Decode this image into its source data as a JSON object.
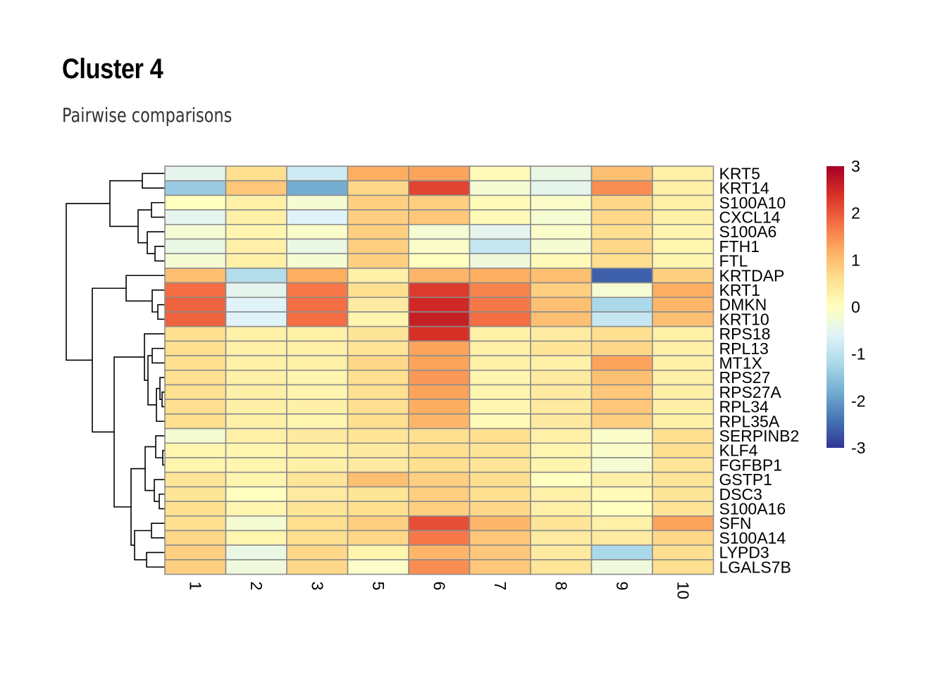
{
  "chart_data": {
    "type": "heatmap",
    "title": "Cluster 4",
    "subtitle": "Pairwise comparisons",
    "columns": [
      "1",
      "2",
      "3",
      "5",
      "6",
      "7",
      "8",
      "9",
      "10"
    ],
    "rows": [
      "KRT5",
      "KRT14",
      "S100A10",
      "CXCL14",
      "S100A6",
      "FTH1",
      "FTL",
      "KRTDAP",
      "KRT1",
      "DMKN",
      "KRT10",
      "RPS18",
      "RPL13",
      "MT1X",
      "RPS27",
      "RPS27A",
      "RPL34",
      "RPL35A",
      "SERPINB2",
      "KLF4",
      "FGFBP1",
      "GSTP1",
      "DSC3",
      "S100A16",
      "SFN",
      "S100A14",
      "LYPD3",
      "LGALS7B"
    ],
    "values": [
      [
        -0.5,
        0.6,
        -0.8,
        1.2,
        1.3,
        0.1,
        -0.4,
        1.0,
        0.3
      ],
      [
        -1.4,
        0.9,
        -1.8,
        0.7,
        2.2,
        -0.2,
        -0.5,
        1.5,
        0.3
      ],
      [
        0.0,
        0.3,
        -0.2,
        0.8,
        0.8,
        0.1,
        -0.1,
        0.7,
        0.3
      ],
      [
        -0.5,
        0.3,
        -0.6,
        0.8,
        0.9,
        0.1,
        -0.2,
        0.7,
        0.3
      ],
      [
        -0.2,
        0.2,
        -0.1,
        0.8,
        -0.2,
        -0.5,
        -0.1,
        0.6,
        0.2
      ],
      [
        -0.4,
        0.3,
        -0.4,
        0.8,
        -0.1,
        -0.9,
        -0.2,
        0.7,
        0.2
      ],
      [
        -0.2,
        0.3,
        -0.2,
        0.8,
        0.0,
        -0.3,
        0.1,
        0.6,
        0.2
      ],
      [
        1.0,
        -1.1,
        1.2,
        0.3,
        1.1,
        1.2,
        1.0,
        -2.6,
        0.8
      ],
      [
        1.8,
        -0.5,
        1.7,
        0.6,
        2.3,
        1.6,
        0.8,
        -0.2,
        1.2
      ],
      [
        1.9,
        -0.6,
        1.8,
        0.4,
        2.5,
        1.7,
        1.0,
        -1.2,
        1.1
      ],
      [
        1.9,
        -0.6,
        1.8,
        0.2,
        2.6,
        1.8,
        1.0,
        -0.9,
        1.0
      ],
      [
        0.6,
        0.3,
        0.3,
        0.5,
        2.4,
        0.3,
        0.4,
        0.6,
        0.3
      ],
      [
        0.6,
        0.3,
        0.3,
        0.5,
        1.3,
        0.3,
        0.5,
        0.7,
        0.3
      ],
      [
        0.6,
        0.3,
        0.3,
        0.7,
        1.3,
        0.3,
        0.3,
        1.3,
        0.3
      ],
      [
        0.6,
        0.3,
        0.2,
        0.6,
        1.4,
        0.2,
        0.4,
        1.0,
        0.3
      ],
      [
        0.6,
        0.3,
        0.2,
        0.6,
        1.3,
        0.2,
        0.4,
        0.9,
        0.3
      ],
      [
        0.6,
        0.3,
        0.3,
        0.6,
        1.2,
        0.2,
        0.4,
        0.9,
        0.3
      ],
      [
        0.6,
        0.3,
        0.2,
        0.6,
        1.1,
        0.1,
        0.4,
        0.8,
        0.3
      ],
      [
        -0.2,
        0.3,
        0.4,
        0.5,
        0.6,
        0.6,
        0.3,
        -0.1,
        0.6
      ],
      [
        0.2,
        0.2,
        0.3,
        0.4,
        0.6,
        0.5,
        0.2,
        -0.1,
        0.6
      ],
      [
        0.2,
        0.2,
        0.3,
        0.4,
        0.6,
        0.5,
        0.2,
        -0.2,
        0.5
      ],
      [
        0.5,
        0.2,
        0.5,
        1.0,
        0.8,
        0.6,
        0.0,
        0.3,
        0.5
      ],
      [
        0.5,
        0.0,
        0.4,
        0.5,
        0.8,
        0.6,
        0.3,
        0.1,
        0.5
      ],
      [
        0.6,
        0.2,
        0.5,
        0.6,
        0.8,
        0.7,
        0.3,
        0.0,
        0.5
      ],
      [
        0.6,
        -0.2,
        0.6,
        0.8,
        2.1,
        1.1,
        0.5,
        0.3,
        1.3
      ],
      [
        0.7,
        0.2,
        0.6,
        0.7,
        1.7,
        0.9,
        0.4,
        0.4,
        0.7
      ],
      [
        0.8,
        -0.4,
        0.7,
        0.2,
        1.1,
        0.9,
        0.4,
        -1.2,
        0.6
      ],
      [
        0.8,
        -0.3,
        0.7,
        -0.1,
        1.5,
        0.9,
        0.5,
        -0.3,
        0.6
      ]
    ],
    "colorbar": {
      "min": -3,
      "max": 3,
      "ticks": [
        "3",
        "2",
        "1",
        "0",
        "-1",
        "-2",
        "-3"
      ],
      "colors": [
        "#313695",
        "#4575b4",
        "#74add1",
        "#abd9e9",
        "#e0f3f8",
        "#ffffbf",
        "#fee090",
        "#fdae61",
        "#f46d43",
        "#d73027",
        "#a50026"
      ]
    },
    "row_dendrogram": true,
    "legend_position": "right"
  }
}
